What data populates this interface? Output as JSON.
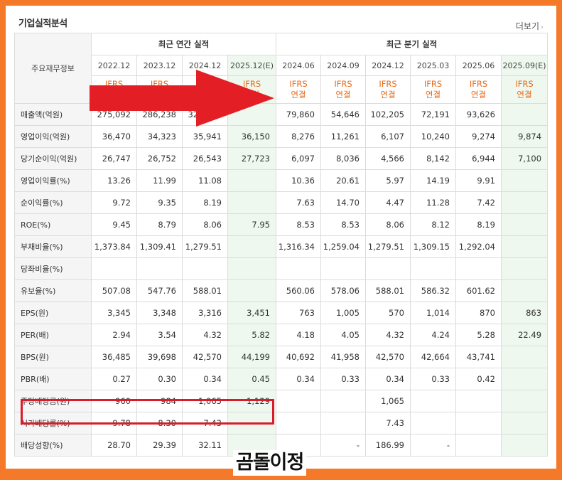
{
  "section_title": "기업실적분석",
  "more_link": "더보기",
  "header": {
    "corner_label": "주요재무정보",
    "annual_group": "최근 연간 실적",
    "quarter_group": "최근 분기 실적",
    "annual_periods": [
      "2022.12",
      "2023.12",
      "2024.12",
      "2025.12(E)"
    ],
    "quarter_periods": [
      "2024.06",
      "2024.09",
      "2024.12",
      "2025.03",
      "2025.06",
      "2025.09(E)"
    ],
    "ifrs_top": "IFRS",
    "ifrs_bottom": "연결"
  },
  "rows": [
    {
      "label": "매출액(억원)",
      "values": [
        "275,092",
        "286,238",
        "324,300",
        "",
        "79,860",
        "54,646",
        "102,205",
        "72,191",
        "93,626",
        ""
      ]
    },
    {
      "label": "영업이익(억원)",
      "values": [
        "36,470",
        "34,323",
        "35,941",
        "36,150",
        "8,276",
        "11,261",
        "6,107",
        "10,240",
        "9,274",
        "9,874"
      ]
    },
    {
      "label": "당기순이익(억원)",
      "values": [
        "26,747",
        "26,752",
        "26,543",
        "27,723",
        "6,097",
        "8,036",
        "4,566",
        "8,142",
        "6,944",
        "7,100"
      ]
    },
    {
      "label": "영업이익률(%)",
      "values": [
        "13.26",
        "11.99",
        "11.08",
        "",
        "10.36",
        "20.61",
        "5.97",
        "14.19",
        "9.91",
        ""
      ]
    },
    {
      "label": "순이익률(%)",
      "values": [
        "9.72",
        "9.35",
        "8.19",
        "",
        "7.63",
        "14.70",
        "4.47",
        "11.28",
        "7.42",
        ""
      ]
    },
    {
      "label": "ROE(%)",
      "values": [
        "9.45",
        "8.79",
        "8.06",
        "7.95",
        "8.53",
        "8.53",
        "8.06",
        "8.12",
        "8.19",
        ""
      ]
    },
    {
      "label": "부채비율(%)",
      "values": [
        "1,373.84",
        "1,309.41",
        "1,279.51",
        "",
        "1,316.34",
        "1,259.04",
        "1,279.51",
        "1,309.15",
        "1,292.04",
        ""
      ]
    },
    {
      "label": "당좌비율(%)",
      "values": [
        "",
        "",
        "",
        "",
        "",
        "",
        "",
        "",
        "",
        ""
      ]
    },
    {
      "label": "유보율(%)",
      "values": [
        "507.08",
        "547.76",
        "588.01",
        "",
        "560.06",
        "578.06",
        "588.01",
        "586.32",
        "601.62",
        ""
      ]
    },
    {
      "label": "EPS(원)",
      "values": [
        "3,345",
        "3,348",
        "3,316",
        "3,451",
        "763",
        "1,005",
        "570",
        "1,014",
        "870",
        "863"
      ]
    },
    {
      "label": "PER(배)",
      "values": [
        "2.94",
        "3.54",
        "4.32",
        "5.82",
        "4.18",
        "4.05",
        "4.32",
        "4.24",
        "5.28",
        "22.49"
      ]
    },
    {
      "label": "BPS(원)",
      "values": [
        "36,485",
        "39,698",
        "42,570",
        "44,199",
        "40,692",
        "41,958",
        "42,570",
        "42,664",
        "43,741",
        ""
      ]
    },
    {
      "label": "PBR(배)",
      "values": [
        "0.27",
        "0.30",
        "0.34",
        "0.45",
        "0.34",
        "0.33",
        "0.34",
        "0.33",
        "0.42",
        ""
      ]
    },
    {
      "label": "주당배당금(원)",
      "values": [
        "960",
        "984",
        "1,065",
        "1,129",
        "",
        "",
        "1,065",
        "",
        "",
        ""
      ]
    },
    {
      "label": "시가배당률(%)",
      "values": [
        "9.78",
        "8.30",
        "7.43",
        "",
        "",
        "",
        "7.43",
        "",
        "",
        ""
      ]
    },
    {
      "label": "배당성향(%)",
      "values": [
        "28.70",
        "29.39",
        "32.11",
        "",
        "",
        "-",
        "186.99",
        "-",
        "",
        ""
      ]
    }
  ],
  "watermark": "곰돌이정",
  "colors": {
    "ifrs": "#e86a1a",
    "arrow": "#e31e25",
    "highlight_box": "#d81c2a",
    "border_frame": "#f47a2a",
    "estimate_bg": "#eef8ee"
  }
}
